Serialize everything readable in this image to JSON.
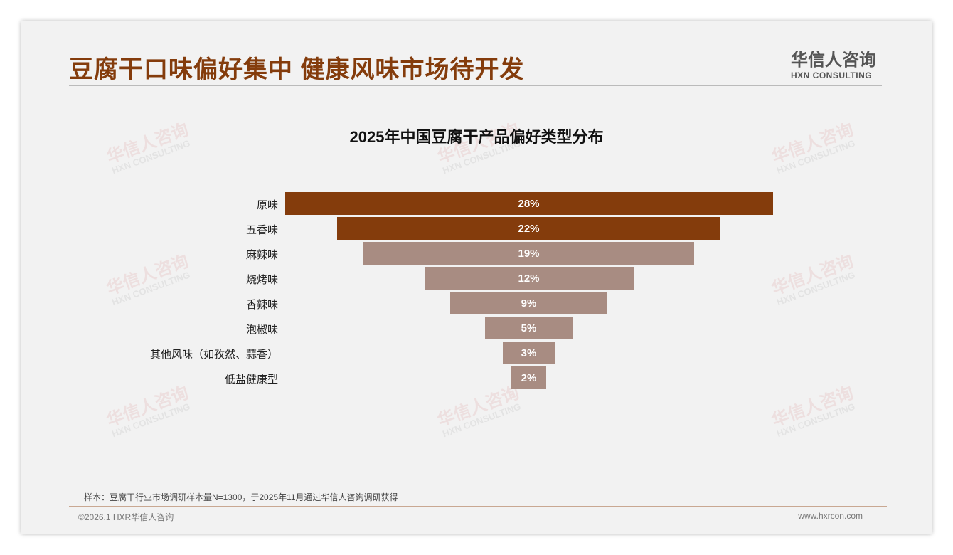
{
  "header": {
    "title": "豆腐干口味偏好集中 健康风味市场待开发",
    "logo_cn": "华信人咨询",
    "logo_en": "HXN CONSULTING"
  },
  "chart_data": {
    "type": "bar",
    "orientation": "horizontal-funnel",
    "title": "2025年中国豆腐干产品偏好类型分布",
    "categories": [
      "原味",
      "五香味",
      "麻辣味",
      "烧烤味",
      "香辣味",
      "泡椒味",
      "其他风味（如孜然、蒜香）",
      "低盐健康型"
    ],
    "values": [
      28,
      22,
      19,
      12,
      9,
      5,
      3,
      2
    ],
    "labels": [
      "28%",
      "22%",
      "19%",
      "12%",
      "9%",
      "5%",
      "3%",
      "2%"
    ],
    "colors": [
      "#843C0C",
      "#843C0C",
      "#A88C82",
      "#A88C82",
      "#A88C82",
      "#A88C82",
      "#A88C82",
      "#A88C82"
    ],
    "unit": "%"
  },
  "footer": {
    "note": "样本：豆腐干行业市场调研样本量N=1300，于2025年11月通过华信人咨询调研获得",
    "copyright": "©2026.1 HXR华信人咨询",
    "url": "www.hxrcon.com"
  }
}
